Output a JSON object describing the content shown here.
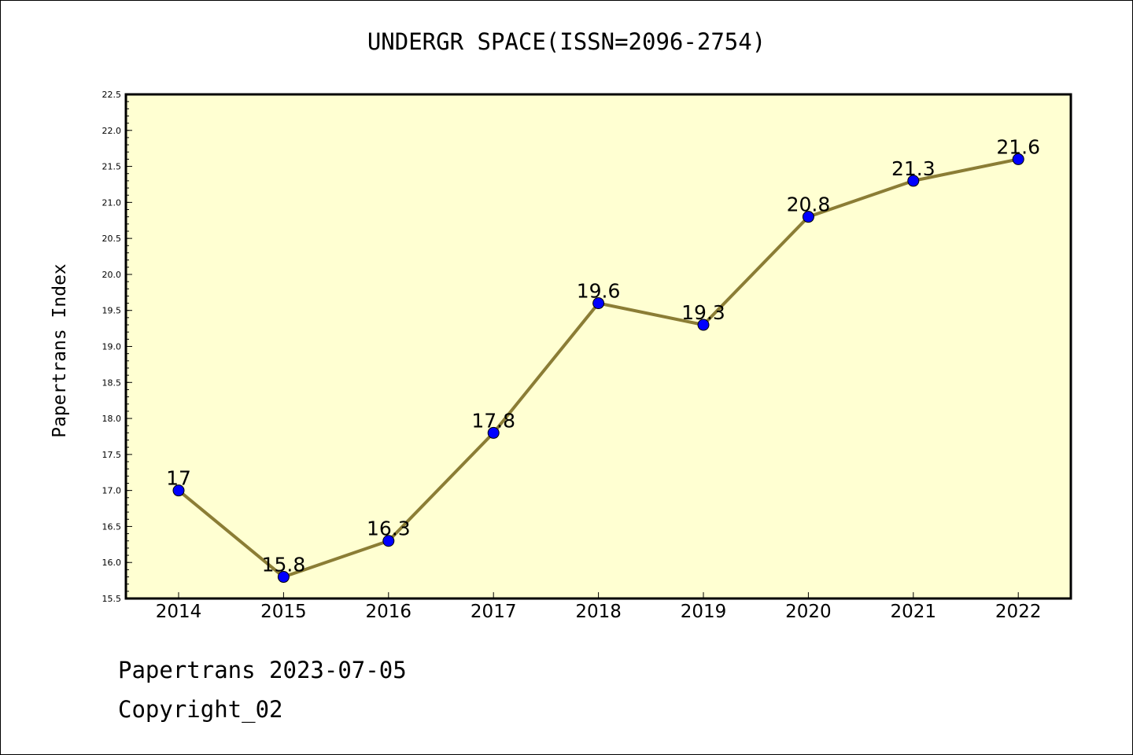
{
  "chart_data": {
    "type": "line",
    "title": "UNDERGR SPACE(ISSN=2096-2754)",
    "xlabel": "",
    "ylabel": "Papertrans Index",
    "categories": [
      "2014",
      "2015",
      "2016",
      "2017",
      "2018",
      "2019",
      "2020",
      "2021",
      "2022"
    ],
    "series": [
      {
        "values": [
          17,
          15.8,
          16.3,
          17.8,
          19.6,
          19.3,
          20.8,
          21.3,
          21.6
        ],
        "data_labels": [
          "17",
          "15.8",
          "16.3",
          "17.8",
          "19.6",
          "19.3",
          "20.8",
          "21.3",
          "21.6"
        ]
      }
    ],
    "ylim": [
      15.5,
      22.5
    ],
    "yticks": [
      "15.5",
      "16.0",
      "16.5",
      "17.0",
      "17.5",
      "18.0",
      "18.5",
      "19.0",
      "19.5",
      "20.0",
      "20.5",
      "21.0",
      "21.5",
      "22.0",
      "22.5"
    ],
    "grid": false,
    "colors": {
      "plot_background": "#ffffd2",
      "line": "#8b7d35",
      "marker": "#0000ff"
    }
  },
  "footer": {
    "line1": "Papertrans 2023-07-05",
    "line2": "Copyright_02"
  }
}
